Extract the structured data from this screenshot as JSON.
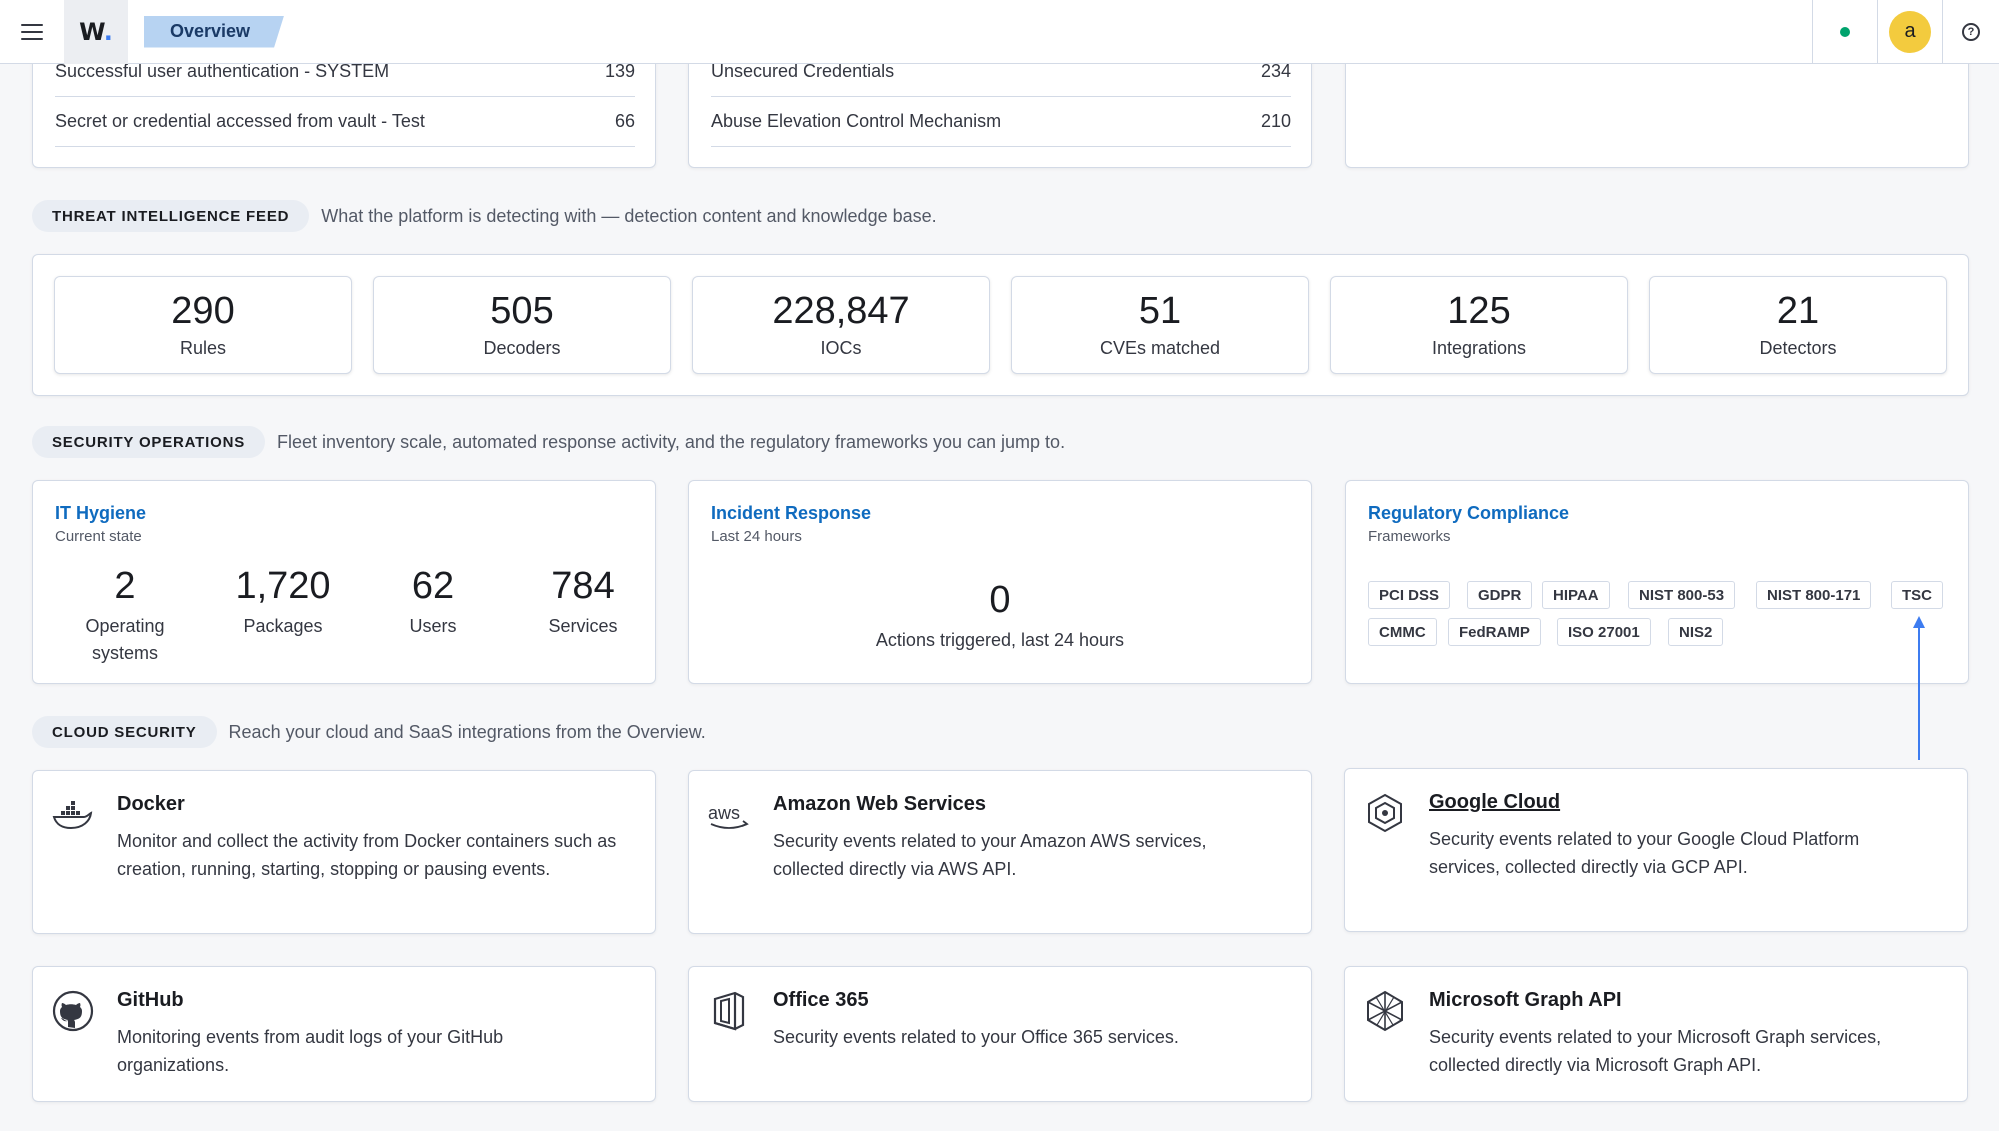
{
  "topbar": {
    "logo": "W.",
    "breadcrumb": "Overview",
    "avatar_initial": "a",
    "help_glyph": "?"
  },
  "top_lists": {
    "left": [
      {
        "label": "Successful user authentication - SYSTEM",
        "value": "139"
      },
      {
        "label": "Secret or credential accessed from vault - Test",
        "value": "66"
      }
    ],
    "middle": [
      {
        "label": "Unsecured Credentials",
        "value": "234"
      },
      {
        "label": "Abuse Elevation Control Mechanism",
        "value": "210"
      }
    ]
  },
  "threat_intel": {
    "title": "THREAT INTELLIGENCE FEED",
    "description": "What the platform is detecting with — detection content and knowledge base.",
    "stats": [
      {
        "value": "290",
        "label": "Rules"
      },
      {
        "value": "505",
        "label": "Decoders"
      },
      {
        "value": "228,847",
        "label": "IOCs"
      },
      {
        "value": "51",
        "label": "CVEs matched"
      },
      {
        "value": "125",
        "label": "Integrations"
      },
      {
        "value": "21",
        "label": "Detectors"
      }
    ]
  },
  "security_ops": {
    "title": "SECURITY OPERATIONS",
    "description": "Fleet inventory scale, automated response activity, and the regulatory frameworks you can jump to.",
    "it_hygiene": {
      "title": "IT Hygiene",
      "subtitle": "Current state",
      "metrics": [
        {
          "value": "2",
          "label": "Operating systems"
        },
        {
          "value": "1,720",
          "label": "Packages"
        },
        {
          "value": "62",
          "label": "Users"
        },
        {
          "value": "784",
          "label": "Services"
        }
      ]
    },
    "incident_response": {
      "title": "Incident Response",
      "subtitle": "Last 24 hours",
      "value": "0",
      "label": "Actions triggered, last 24 hours"
    },
    "compliance": {
      "title": "Regulatory Compliance",
      "subtitle": "Frameworks",
      "frameworks": [
        "PCI DSS",
        "GDPR",
        "HIPAA",
        "NIST 800-53",
        "NIST 800-171",
        "TSC",
        "CMMC",
        "FedRAMP",
        "ISO 27001",
        "NIS2"
      ]
    }
  },
  "cloud_security": {
    "title": "CLOUD SECURITY",
    "description": "Reach your cloud and SaaS integrations from the Overview.",
    "integrations": [
      {
        "icon": "docker-icon",
        "title": "Docker",
        "description": "Monitor and collect the activity from Docker containers such as creation, running, starting, stopping or pausing events."
      },
      {
        "icon": "aws-icon",
        "icon_text": "aws",
        "title": "Amazon Web Services",
        "description": "Security events related to your Amazon AWS services, collected directly via AWS API."
      },
      {
        "icon": "google-cloud-icon",
        "title": "Google Cloud",
        "description": "Security events related to your Google Cloud Platform services, collected directly via GCP API."
      },
      {
        "icon": "github-icon",
        "title": "GitHub",
        "description": "Monitoring events from audit logs of your GitHub organizations."
      },
      {
        "icon": "office-365-icon",
        "title": "Office 365",
        "description": "Security events related to your Office 365 services."
      },
      {
        "icon": "microsoft-graph-icon",
        "title": "Microsoft Graph API",
        "description": "Security events related to your Microsoft Graph services, collected directly via Microsoft Graph API."
      }
    ]
  },
  "colors": {
    "accent": "#0f6bbf",
    "status": "#00a36d",
    "avatar": "#f3cb3e",
    "breadcrumb": "#b7d3f2",
    "arrow": "#3d7cf0"
  }
}
